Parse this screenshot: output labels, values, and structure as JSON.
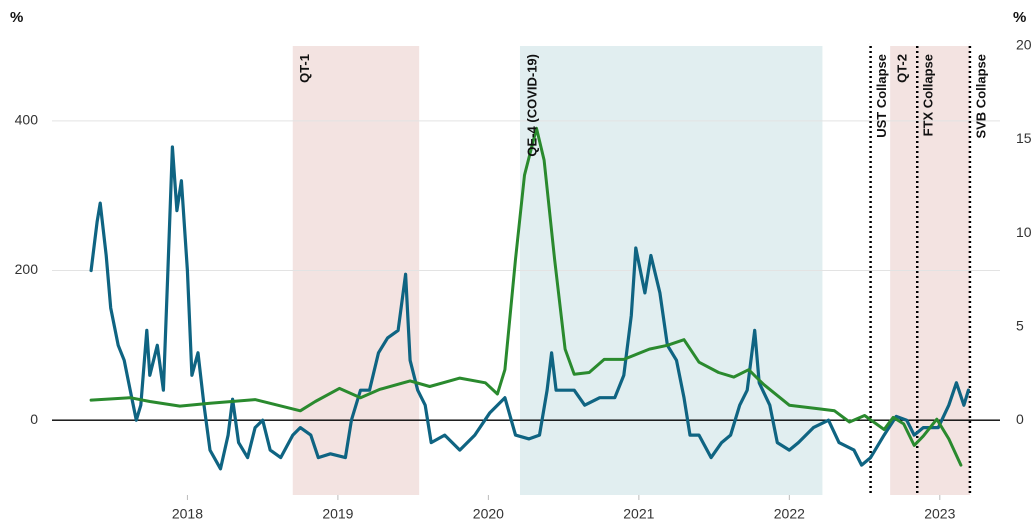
{
  "chart_data": {
    "type": "line",
    "y_unit": "%",
    "y2_unit": "%",
    "xlim": [
      2017.1,
      2023.4
    ],
    "xticks": [
      2018,
      2019,
      2020,
      2021,
      2022,
      2023
    ],
    "ylim": [
      -100,
      500
    ],
    "yticks": [
      0,
      200,
      400
    ],
    "y2lim": [
      -4,
      20
    ],
    "y2ticks": [
      0,
      5,
      10,
      15,
      20
    ],
    "grid": true,
    "regions": [
      {
        "label": "QT-1",
        "start": 2018.7,
        "end": 2019.54,
        "color": "#f3e3e1"
      },
      {
        "label": "QE-4 (COVID-19)",
        "start": 2020.21,
        "end": 2022.22,
        "color": "#e1eef0"
      },
      {
        "label": "QT-2",
        "start": 2022.67,
        "end": 2023.2,
        "color": "#f3e3e1"
      }
    ],
    "events": [
      {
        "label": "UST Collapse",
        "x": 2022.54
      },
      {
        "label": "FTX Collapse",
        "x": 2022.85
      },
      {
        "label": "SVB Collapse",
        "x": 2023.2
      }
    ],
    "series": [
      {
        "color": "#0f6482",
        "axis": "y",
        "x": [
          2017.36,
          2017.4,
          2017.42,
          2017.46,
          2017.49,
          2017.54,
          2017.58,
          2017.62,
          2017.66,
          2017.69,
          2017.73,
          2017.75,
          2017.8,
          2017.84,
          2017.87,
          2017.9,
          2017.93,
          2017.96,
          2018.0,
          2018.03,
          2018.07,
          2018.11,
          2018.15,
          2018.22,
          2018.27,
          2018.3,
          2018.34,
          2018.4,
          2018.45,
          2018.5,
          2018.55,
          2018.62,
          2018.7,
          2018.75,
          2018.82,
          2018.87,
          2018.95,
          2019.05,
          2019.09,
          2019.15,
          2019.21,
          2019.27,
          2019.33,
          2019.4,
          2019.45,
          2019.48,
          2019.53,
          2019.58,
          2019.62,
          2019.71,
          2019.81,
          2019.91,
          2020.01,
          2020.11,
          2020.18,
          2020.27,
          2020.34,
          2020.39,
          2020.42,
          2020.45,
          2020.51,
          2020.57,
          2020.64,
          2020.74,
          2020.84,
          2020.9,
          2020.95,
          2020.98,
          2021.04,
          2021.08,
          2021.14,
          2021.19,
          2021.25,
          2021.3,
          2021.34,
          2021.4,
          2021.48,
          2021.55,
          2021.61,
          2021.67,
          2021.72,
          2021.77,
          2021.8,
          2021.87,
          2021.92,
          2022.0,
          2022.06,
          2022.16,
          2022.26,
          2022.33,
          2022.43,
          2022.48,
          2022.54,
          2022.63,
          2022.71,
          2022.78,
          2022.83,
          2022.89,
          2022.99,
          2023.06,
          2023.11,
          2023.16,
          2023.19
        ],
        "values": [
          200,
          265,
          290,
          220,
          150,
          100,
          80,
          40,
          0,
          20,
          120,
          60,
          100,
          40,
          200,
          365,
          280,
          320,
          200,
          60,
          90,
          20,
          -40,
          -65,
          -20,
          28,
          -30,
          -50,
          -10,
          0,
          -40,
          -50,
          -20,
          -10,
          -20,
          -50,
          -45,
          -50,
          0,
          40,
          40,
          90,
          110,
          120,
          195,
          80,
          40,
          20,
          -30,
          -20,
          -40,
          -20,
          10,
          30,
          -20,
          -25,
          -20,
          40,
          90,
          40,
          40,
          40,
          20,
          30,
          30,
          60,
          140,
          230,
          170,
          220,
          170,
          100,
          80,
          30,
          -20,
          -20,
          -50,
          -30,
          -20,
          20,
          40,
          120,
          50,
          20,
          -30,
          -40,
          -30,
          -10,
          0,
          -30,
          -40,
          -60,
          -50,
          -20,
          5,
          0,
          -20,
          -10,
          -10,
          20,
          50,
          20,
          40
        ]
      },
      {
        "color": "#2a8a2e",
        "axis": "y2",
        "x": [
          2017.36,
          2017.62,
          2017.75,
          2017.95,
          2018.15,
          2018.45,
          2018.75,
          2018.85,
          2019.01,
          2019.15,
          2019.28,
          2019.48,
          2019.61,
          2019.81,
          2019.98,
          2020.06,
          2020.11,
          2020.18,
          2020.24,
          2020.32,
          2020.37,
          2020.44,
          2020.51,
          2020.57,
          2020.67,
          2020.77,
          2020.9,
          2021.07,
          2021.19,
          2021.3,
          2021.4,
          2021.53,
          2021.63,
          2021.73,
          2021.83,
          2022.0,
          2022.2,
          2022.3,
          2022.4,
          2022.5,
          2022.63,
          2022.69,
          2022.76,
          2022.83,
          2022.89,
          2022.98,
          2023.06,
          2023.14
        ],
        "values": [
          1.07,
          1.2,
          1.0,
          0.75,
          0.9,
          1.1,
          0.5,
          1.0,
          1.7,
          1.2,
          1.65,
          2.1,
          1.8,
          2.25,
          2.0,
          1.4,
          2.7,
          8.6,
          13.1,
          15.6,
          13.9,
          8.6,
          3.8,
          2.45,
          2.55,
          3.25,
          3.25,
          3.8,
          4.0,
          4.3,
          3.1,
          2.55,
          2.3,
          2.7,
          1.9,
          0.8,
          0.6,
          0.5,
          -0.1,
          0.25,
          -0.5,
          0.15,
          -0.2,
          -1.35,
          -0.85,
          0.05,
          -1.0,
          -2.4
        ]
      }
    ]
  }
}
